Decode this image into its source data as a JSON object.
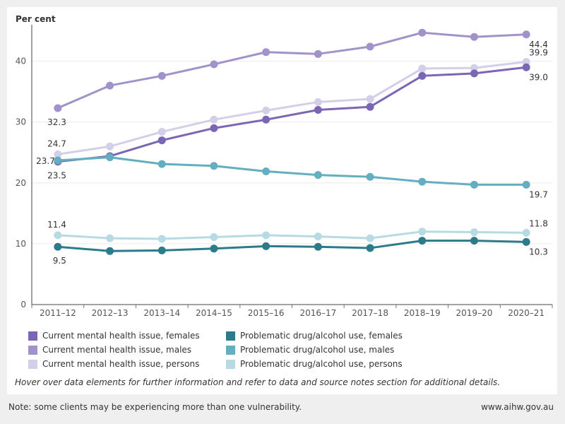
{
  "chart_data": {
    "type": "line",
    "ylabel": "Per cent",
    "x": [
      "2011–12",
      "2012–13",
      "2013–14",
      "2014–15",
      "2015–16",
      "2016–17",
      "2017–18",
      "2018–19",
      "2019–20",
      "2020–21"
    ],
    "ylim": [
      0,
      46
    ],
    "yticks": [
      0,
      10,
      20,
      30,
      40
    ],
    "series": [
      {
        "name": "Current mental health issue, males",
        "color": "#a193c9",
        "values": [
          32.3,
          36.0,
          37.6,
          39.5,
          41.5,
          41.2,
          42.4,
          44.7,
          44.0,
          44.4
        ]
      },
      {
        "name": "Current mental health issue, persons",
        "color": "#d3cfe8",
        "values": [
          24.7,
          26.0,
          28.4,
          30.4,
          31.9,
          33.3,
          33.8,
          38.8,
          38.9,
          39.9
        ]
      },
      {
        "name": "Current mental health issue, females",
        "color": "#7b66b5",
        "values": [
          23.5,
          24.4,
          27.0,
          29.0,
          30.4,
          32.0,
          32.5,
          37.6,
          38.0,
          39.0
        ]
      },
      {
        "name": "Problematic drug/alcohol use, males",
        "color": "#63aec0",
        "values": [
          23.7,
          24.2,
          23.1,
          22.8,
          21.9,
          21.3,
          21.0,
          20.2,
          19.7,
          19.7
        ]
      },
      {
        "name": "Problematic drug/alcohol use, persons",
        "color": "#b7dae3",
        "values": [
          11.4,
          10.9,
          10.8,
          11.1,
          11.4,
          11.2,
          10.9,
          12.0,
          11.9,
          11.8
        ]
      },
      {
        "name": "Problematic drug/alcohol use, females",
        "color": "#2b7b8b",
        "values": [
          9.5,
          8.8,
          8.9,
          9.2,
          9.6,
          9.5,
          9.3,
          10.5,
          10.5,
          10.3
        ]
      }
    ],
    "data_labels": [
      {
        "series": 0,
        "point": 0,
        "text": "32.3",
        "pos": "below"
      },
      {
        "series": 1,
        "point": 0,
        "text": "24.7",
        "pos": "above"
      },
      {
        "series": 3,
        "point": 0,
        "text": "23.7",
        "pos": "left"
      },
      {
        "series": 2,
        "point": 0,
        "text": "23.5",
        "pos": "below"
      },
      {
        "series": 4,
        "point": 0,
        "text": "11.4",
        "pos": "above"
      },
      {
        "series": 5,
        "point": 0,
        "text": "9.5",
        "pos": "below"
      },
      {
        "series": 0,
        "point": 9,
        "text": "44.4",
        "pos": "below"
      },
      {
        "series": 1,
        "point": 9,
        "text": "39.9",
        "pos": "above"
      },
      {
        "series": 2,
        "point": 9,
        "text": "39.0",
        "pos": "below"
      },
      {
        "series": 3,
        "point": 9,
        "text": "19.7",
        "pos": "below"
      },
      {
        "series": 4,
        "point": 9,
        "text": "11.8",
        "pos": "above"
      },
      {
        "series": 5,
        "point": 9,
        "text": "10.3",
        "pos": "below"
      }
    ],
    "legend": [
      {
        "label": "Current mental health issue, females",
        "color": "#7b66b5"
      },
      {
        "label": "Problematic drug/alcohol use, females",
        "color": "#2b7b8b"
      },
      {
        "label": "Current mental health issue, males",
        "color": "#a193c9"
      },
      {
        "label": "Problematic drug/alcohol use, males",
        "color": "#63aec0"
      },
      {
        "label": "Current mental health issue, persons",
        "color": "#d3cfe8"
      },
      {
        "label": "Problematic drug/alcohol use, persons",
        "color": "#b7dae3"
      }
    ]
  },
  "notes": {
    "hover": "Hover over data elements for further information and refer to data and source notes section for additional details.",
    "footer": "Note: some clients may be experiencing more than one vulnerability.",
    "site": "www.aihw.gov.au"
  }
}
